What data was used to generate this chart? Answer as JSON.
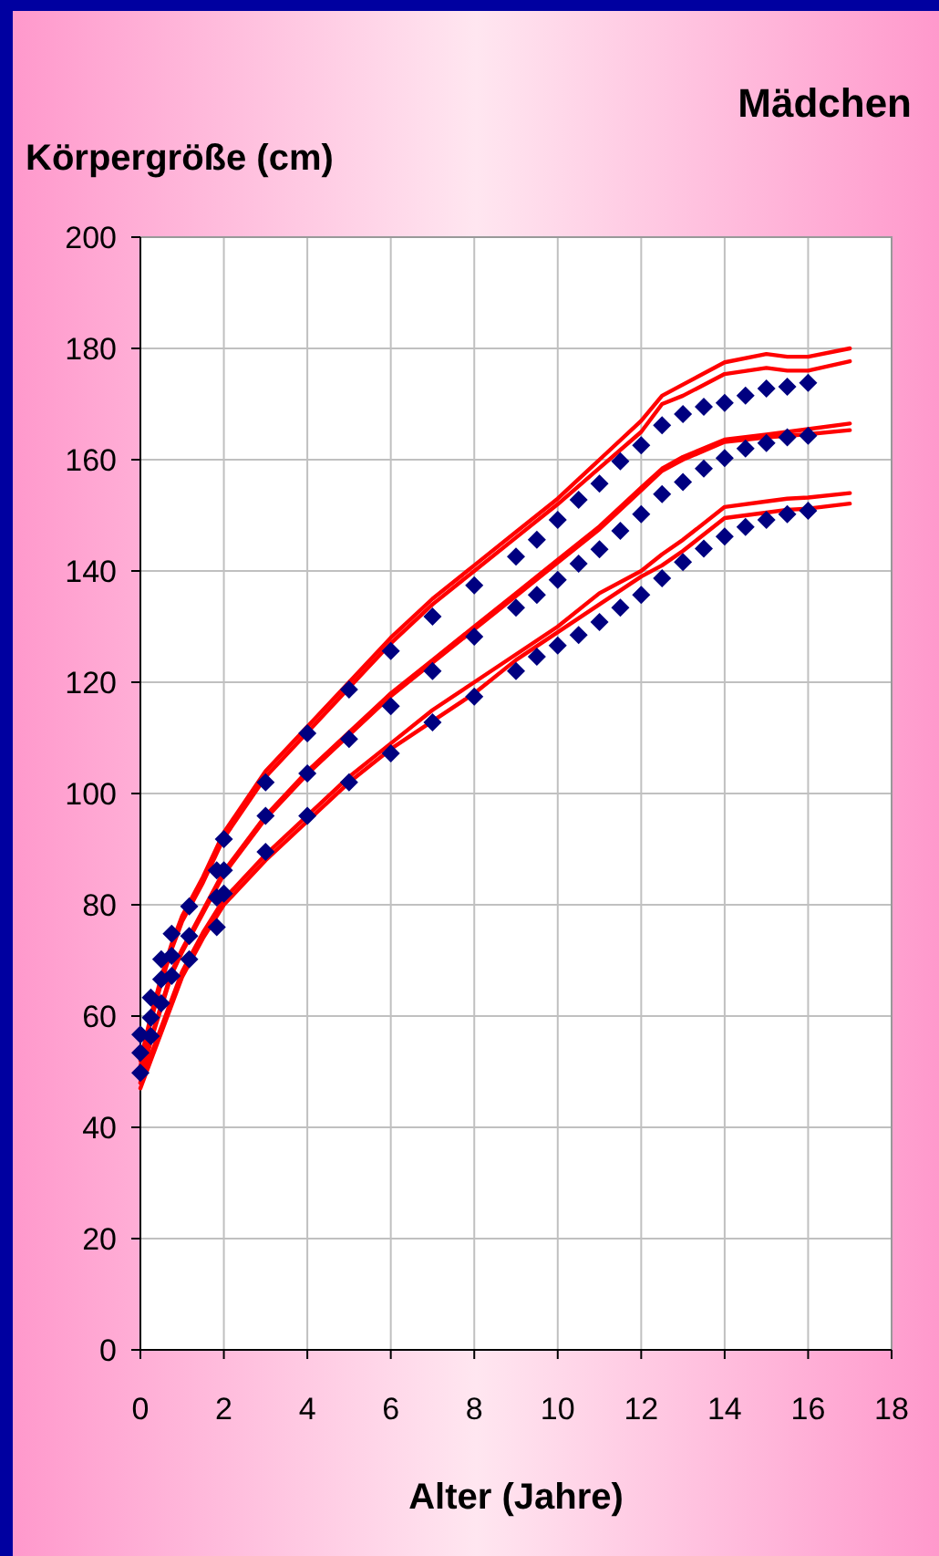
{
  "chart_data": {
    "type": "line",
    "title": "Mädchen",
    "ylabel": "Körpergröße (cm)",
    "xlabel": "Alter (Jahre)",
    "xlim": [
      0,
      18
    ],
    "xticks": [
      0,
      2,
      4,
      6,
      8,
      10,
      12,
      14,
      16,
      18
    ],
    "ylim": [
      0,
      200
    ],
    "yticks": [
      0,
      20,
      40,
      60,
      80,
      100,
      120,
      140,
      160,
      180,
      200
    ],
    "grid": true,
    "line_style": "solid",
    "series": [
      {
        "color": "#ff0000",
        "marker": "none",
        "x": [
          0,
          0.25,
          0.5,
          0.75,
          1,
          1.5,
          2,
          3,
          4,
          5,
          6,
          7,
          8,
          9,
          10,
          11,
          12,
          12.5,
          13,
          14,
          15,
          15.5,
          16,
          17
        ],
        "values": [
          52,
          60,
          67,
          73,
          78,
          85,
          93,
          104,
          112,
          120,
          128,
          135,
          141,
          147,
          153,
          160,
          167,
          171.5,
          173.5,
          177.5,
          179,
          178.5,
          178.5,
          180
        ]
      },
      {
        "color": "#ff0000",
        "marker": "none",
        "x": [
          0,
          0.25,
          0.5,
          0.75,
          1,
          1.5,
          2,
          3,
          4,
          5,
          6,
          7,
          8,
          9,
          10,
          11,
          12,
          12.5,
          13,
          14,
          15,
          15.5,
          16,
          17
        ],
        "values": [
          51,
          59,
          66,
          72,
          77,
          84,
          92,
          103,
          111,
          119,
          127,
          134,
          140,
          146,
          152,
          158.5,
          165,
          170,
          171.5,
          175.4,
          176.5,
          176,
          176,
          177.7
        ]
      },
      {
        "color": "#ff0000",
        "marker": "none",
        "x": [
          0,
          0.25,
          0.5,
          0.75,
          1,
          1.5,
          2,
          3,
          4,
          5,
          6,
          7,
          8,
          9,
          10,
          11,
          12,
          12.5,
          13,
          14,
          15,
          15.5,
          16,
          17
        ],
        "values": [
          49.5,
          56,
          62,
          68,
          72,
          79,
          86,
          96,
          104,
          111,
          118,
          124,
          130,
          136,
          142,
          148,
          155,
          158.4,
          160.5,
          163.6,
          164.5,
          165,
          165.5,
          166.5
        ]
      },
      {
        "color": "#ff0000",
        "marker": "none",
        "x": [
          0,
          0.25,
          0.5,
          0.75,
          1,
          1.5,
          2,
          3,
          4,
          5,
          6,
          7,
          8,
          9,
          10,
          11,
          12,
          12.5,
          13,
          14,
          15,
          15.5,
          16,
          17
        ],
        "values": [
          48,
          55.5,
          61.5,
          67.5,
          71.5,
          78.5,
          85.5,
          95.5,
          103.5,
          110.5,
          117.5,
          123.5,
          129.5,
          135.5,
          141.5,
          147.5,
          154.5,
          158,
          160,
          163.2,
          164,
          164.3,
          164.6,
          165.3
        ]
      },
      {
        "color": "#ff0000",
        "marker": "none",
        "x": [
          0,
          0.25,
          0.5,
          0.75,
          1,
          1.5,
          2,
          3,
          4,
          5,
          6,
          7,
          8,
          9,
          10,
          11,
          12,
          12.5,
          13,
          14,
          15,
          15.5,
          16,
          17
        ],
        "values": [
          48,
          53,
          58,
          63,
          68,
          75,
          81,
          89,
          96,
          103,
          109,
          115,
          120,
          125,
          130,
          136,
          140,
          143,
          145.6,
          151.5,
          152.5,
          153,
          153.2,
          154
        ]
      },
      {
        "color": "#ff0000",
        "marker": "none",
        "x": [
          0,
          0.25,
          0.5,
          0.75,
          1,
          1.5,
          2,
          3,
          4,
          5,
          6,
          7,
          8,
          9,
          10,
          11,
          12,
          12.5,
          13,
          14,
          15,
          15.5,
          16,
          17
        ],
        "values": [
          47,
          52,
          57,
          62,
          67,
          74,
          80,
          88,
          95,
          102,
          108,
          113,
          118,
          124,
          129,
          134,
          139,
          141,
          143.6,
          149.5,
          150.5,
          151,
          151.2,
          152.1
        ]
      },
      {
        "type": "scatter",
        "color": "#000080",
        "marker": "diamond",
        "x": [
          0,
          0.25,
          0.5,
          0.75,
          1.17,
          1.83,
          2,
          3,
          4,
          5,
          6,
          7,
          8,
          9,
          9.5,
          10,
          10.5,
          11,
          11.5,
          12,
          12.5,
          13,
          13.5,
          14,
          14.5,
          15,
          15.5,
          16
        ],
        "values": [
          56.7,
          63.3,
          70.2,
          74.8,
          79.7,
          86.2,
          91.8,
          102,
          110.8,
          118.7,
          125.6,
          131.8,
          137.4,
          142.6,
          145.6,
          149.2,
          152.8,
          155.7,
          159.7,
          162.6,
          166.2,
          168.2,
          169.5,
          170.2,
          171.5,
          172.8,
          173.1,
          173.8
        ]
      },
      {
        "type": "scatter",
        "color": "#000080",
        "marker": "diamond",
        "x": [
          0,
          0.25,
          0.5,
          0.75,
          1.17,
          1.83,
          2,
          3,
          4,
          5,
          6,
          7,
          8,
          9,
          9.5,
          10,
          10.5,
          11,
          11.5,
          12,
          12.5,
          13,
          13.5,
          14,
          14.5,
          15,
          15.5,
          16
        ],
        "values": [
          53.4,
          59.7,
          66.6,
          70.8,
          74.4,
          81.3,
          86.2,
          96,
          103.6,
          109.8,
          115.7,
          122,
          128.2,
          133.4,
          135.7,
          138.4,
          141.3,
          143.9,
          147.2,
          150.2,
          153.8,
          156,
          158.4,
          160.3,
          162,
          163,
          164,
          164.3
        ]
      },
      {
        "type": "scatter",
        "color": "#000080",
        "marker": "diamond",
        "x": [
          0,
          0.25,
          0.5,
          0.75,
          1.17,
          1.83,
          2,
          3,
          4,
          5,
          6,
          7,
          8,
          9,
          9.5,
          10,
          10.5,
          11,
          11.5,
          12,
          12.5,
          13,
          13.5,
          14,
          14.5,
          15,
          15.5,
          16
        ],
        "values": [
          49.8,
          56.4,
          62.3,
          67.2,
          70.2,
          76,
          82,
          89.5,
          96,
          102,
          107.2,
          112.8,
          117.4,
          122,
          124.6,
          126.6,
          128.5,
          130.8,
          133.4,
          135.7,
          138.7,
          141.6,
          144,
          146.2,
          147.9,
          149.2,
          150.2,
          150.8
        ]
      }
    ]
  }
}
